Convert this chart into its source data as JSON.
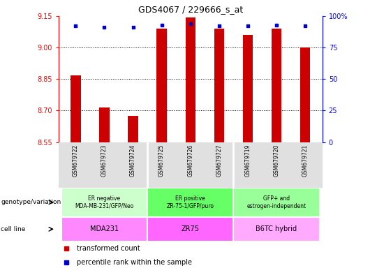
{
  "title": "GDS4067 / 229666_s_at",
  "samples": [
    "GSM679722",
    "GSM679723",
    "GSM679724",
    "GSM679725",
    "GSM679726",
    "GSM679727",
    "GSM679719",
    "GSM679720",
    "GSM679721"
  ],
  "red_values": [
    8.869,
    8.716,
    8.676,
    9.09,
    9.142,
    9.09,
    9.06,
    9.09,
    9.0
  ],
  "blue_values": [
    92,
    91,
    91,
    93,
    94,
    92,
    92,
    93,
    92
  ],
  "ylim_left": [
    8.55,
    9.15
  ],
  "ylim_right": [
    0,
    100
  ],
  "yticks_left": [
    8.55,
    8.7,
    8.85,
    9.0,
    9.15
  ],
  "yticks_right": [
    0,
    25,
    50,
    75,
    100
  ],
  "geno_groups": [
    {
      "label": "ER negative\nMDA-MB-231/GFP/Neo",
      "start": 0,
      "end": 3,
      "color": "#ccffcc"
    },
    {
      "label": "ER positive\nZR-75-1/GFP/puro",
      "start": 3,
      "end": 6,
      "color": "#66ff66"
    },
    {
      "label": "GFP+ and\nestrogen-independent",
      "start": 6,
      "end": 9,
      "color": "#99ff99"
    }
  ],
  "cell_groups": [
    {
      "label": "MDA231",
      "start": 0,
      "end": 3,
      "color": "#ff88ff"
    },
    {
      "label": "ZR75",
      "start": 3,
      "end": 6,
      "color": "#ff66ff"
    },
    {
      "label": "B6TC hybrid",
      "start": 6,
      "end": 9,
      "color": "#ffaaff"
    }
  ],
  "red_color": "#cc0000",
  "blue_color": "#0000cc",
  "bar_width": 0.35,
  "legend_red": "transformed count",
  "legend_blue": "percentile rank within the sample",
  "label_genotype": "genotype/variation",
  "label_cellline": "cell line"
}
